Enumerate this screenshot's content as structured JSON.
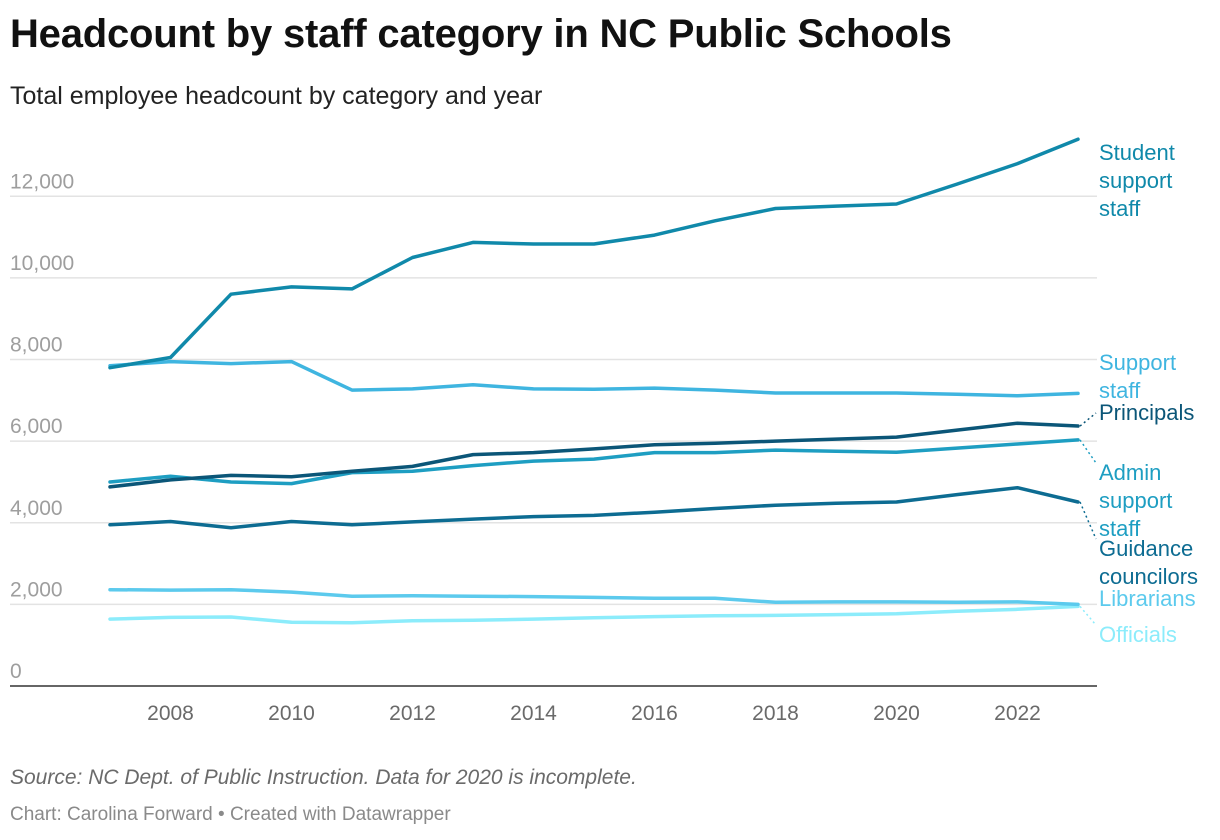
{
  "header": {
    "title": "Headcount by staff category in NC Public Schools",
    "subtitle": "Total employee headcount by category and year"
  },
  "footer": {
    "source": "Source: NC Dept. of Public Instruction. Data for 2020 is incomplete.",
    "credit": "Chart: Carolina Forward • Created with Datawrapper"
  },
  "chart_data": {
    "type": "line",
    "title": "Headcount by staff category in NC Public Schools",
    "subtitle": "Total employee headcount by category and year",
    "xlabel": "",
    "ylabel": "",
    "x": [
      2007,
      2008,
      2009,
      2010,
      2011,
      2012,
      2013,
      2014,
      2015,
      2016,
      2017,
      2018,
      2019,
      2020,
      2021,
      2022,
      2023
    ],
    "xticks": [
      "2008",
      "2010",
      "2012",
      "2014",
      "2016",
      "2018",
      "2020",
      "2022"
    ],
    "yticks": [
      "0",
      "2,000",
      "4,000",
      "6,000",
      "8,000",
      "10,000",
      "12,000"
    ],
    "ylim": [
      0,
      13600
    ],
    "grid": true,
    "series": [
      {
        "name": "Student support staff",
        "label_lines": [
          "Student",
          "support",
          "staff"
        ],
        "color": "#1089aa",
        "values": [
          7800,
          8050,
          9600,
          9780,
          9730,
          10500,
          10870,
          10830,
          10830,
          11050,
          11400,
          11700,
          11760,
          11810,
          12300,
          12800,
          13400
        ]
      },
      {
        "name": "Support staff",
        "label_lines": [
          "Support",
          "staff"
        ],
        "color": "#3fb5e0",
        "values": [
          7850,
          7950,
          7900,
          7950,
          7250,
          7280,
          7380,
          7280,
          7270,
          7300,
          7250,
          7180,
          7180,
          7180,
          7150,
          7110,
          7170
        ]
      },
      {
        "name": "Principals",
        "label_lines": [
          "Principals"
        ],
        "color": "#0b5678",
        "values": [
          4880,
          5050,
          5160,
          5130,
          5260,
          5380,
          5670,
          5720,
          5810,
          5910,
          5950,
          6000,
          6050,
          6100,
          6270,
          6440,
          6370
        ]
      },
      {
        "name": "Admin support staff",
        "label_lines": [
          "Admin",
          "support",
          "staff"
        ],
        "color": "#1e9ec2",
        "values": [
          5000,
          5140,
          5000,
          4960,
          5230,
          5260,
          5400,
          5510,
          5560,
          5720,
          5720,
          5780,
          5750,
          5730,
          5830,
          5930,
          6030
        ]
      },
      {
        "name": "Guidance councilors",
        "label_lines": [
          "Guidance",
          "councilors"
        ],
        "color": "#0d6c92",
        "values": [
          3950,
          4030,
          3880,
          4030,
          3950,
          4020,
          4090,
          4150,
          4180,
          4260,
          4350,
          4430,
          4480,
          4510,
          4690,
          4860,
          4510
        ]
      },
      {
        "name": "Librarians",
        "label_lines": [
          "Librarians"
        ],
        "color": "#5ccaed",
        "values": [
          2360,
          2350,
          2360,
          2300,
          2200,
          2210,
          2200,
          2190,
          2170,
          2150,
          2150,
          2050,
          2060,
          2060,
          2050,
          2060,
          2000
        ]
      },
      {
        "name": "Officials",
        "label_lines": [
          "Officials"
        ],
        "color": "#8cecfb",
        "values": [
          1640,
          1680,
          1690,
          1560,
          1550,
          1600,
          1610,
          1640,
          1670,
          1700,
          1720,
          1730,
          1750,
          1770,
          1830,
          1880,
          1950
        ]
      }
    ]
  }
}
